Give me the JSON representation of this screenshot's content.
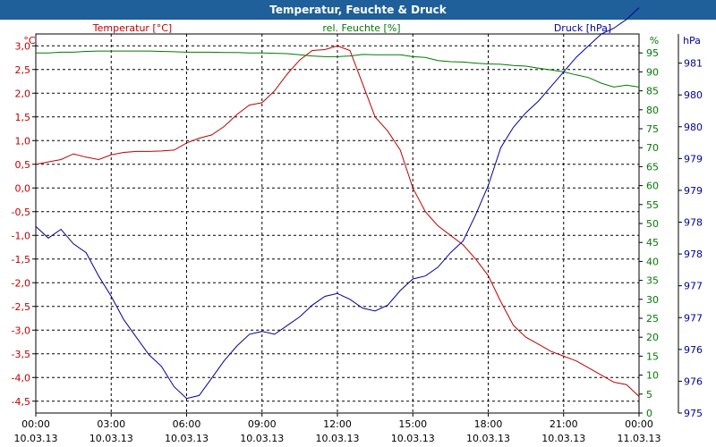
{
  "window": {
    "title": "Temperatur, Feuchte & Druck"
  },
  "colors": {
    "temperature": "#c00000",
    "humidity": "#007a00",
    "pressure": "#00009a",
    "title_bar": "#1f5f9a",
    "grid": "#000000"
  },
  "chart_data": {
    "type": "line",
    "title": "Temperatur, Feuchte & Druck",
    "grid": true,
    "x_ticks": [
      {
        "time": "00:00",
        "date": "10.03.13"
      },
      {
        "time": "03:00",
        "date": "10.03.13"
      },
      {
        "time": "06:00",
        "date": "10.03.13"
      },
      {
        "time": "09:00",
        "date": "10.03.13"
      },
      {
        "time": "12:00",
        "date": "10.03.13"
      },
      {
        "time": "15:00",
        "date": "10.03.13"
      },
      {
        "time": "18:00",
        "date": "10.03.13"
      },
      {
        "time": "21:00",
        "date": "10.03.13"
      },
      {
        "time": "00:00",
        "date": "11.03.13"
      }
    ],
    "x_hours": [
      0,
      0.5,
      1,
      1.5,
      2,
      2.5,
      3,
      3.5,
      4,
      4.5,
      5,
      5.5,
      6,
      6.5,
      7,
      7.5,
      8,
      8.5,
      9,
      9.5,
      10,
      10.5,
      11,
      11.5,
      12,
      12.5,
      13,
      13.5,
      14,
      14.5,
      15,
      15.5,
      16,
      16.5,
      17,
      17.5,
      18,
      18.5,
      19,
      19.5,
      20,
      20.5,
      21,
      21.5,
      22,
      22.5,
      23,
      23.5,
      24
    ],
    "axes": {
      "temperature": {
        "unit_label": "°C",
        "series_label": "Temperatur [°C]",
        "range": [
          -4.75,
          3.25
        ],
        "ticks": [
          "3,0",
          "2,5",
          "2,0",
          "1,5",
          "1,0",
          "0,5",
          "0,0",
          "-0,5",
          "-1,0",
          "-1,5",
          "-2,0",
          "-2,5",
          "-3,0",
          "-3,5",
          "-4,0",
          "-4,5"
        ]
      },
      "humidity": {
        "unit_label": "%",
        "series_label": "rel. Feuchte [%]",
        "range": [
          0,
          100
        ],
        "ticks": [
          "95",
          "90",
          "85",
          "80",
          "75",
          "70",
          "65",
          "60",
          "55",
          "50",
          "45",
          "40",
          "35",
          "30",
          "25",
          "20",
          "15",
          "10",
          "5",
          "0"
        ]
      },
      "pressure": {
        "unit_label": "hPa",
        "series_label": "Druck [hPa]",
        "range": [
          975,
          981.5
        ],
        "ticks": [
          "981",
          "980",
          "980",
          "979",
          "979",
          "978",
          "978",
          "977",
          "977",
          "976",
          "976",
          "975"
        ]
      }
    },
    "series": [
      {
        "name": "Temperatur [°C]",
        "axis": "temperature",
        "values": [
          0.5,
          0.55,
          0.6,
          0.72,
          0.65,
          0.6,
          0.7,
          0.75,
          0.77,
          0.77,
          0.78,
          0.8,
          0.95,
          1.05,
          1.12,
          1.3,
          1.55,
          1.75,
          1.8,
          2.05,
          2.4,
          2.7,
          2.9,
          2.92,
          3.0,
          2.9,
          2.2,
          1.5,
          1.2,
          0.8,
          0.0,
          -0.5,
          -0.8,
          -1.0,
          -1.2,
          -1.5,
          -1.85,
          -2.4,
          -2.9,
          -3.15,
          -3.3,
          -3.45,
          -3.55,
          -3.65,
          -3.8,
          -3.95,
          -4.1,
          -4.15,
          -4.4
        ]
      },
      {
        "name": "rel. Feuchte [%]",
        "axis": "humidity",
        "values": [
          95,
          95,
          95.2,
          95.2,
          95.4,
          95.5,
          95.5,
          95.5,
          95.5,
          95.5,
          95.4,
          95.3,
          95.2,
          95.2,
          95.2,
          95.1,
          95.1,
          95,
          95,
          94.9,
          94.8,
          94.5,
          94.2,
          94,
          94,
          94.2,
          94.6,
          94.5,
          94.5,
          94.5,
          94,
          93.8,
          93,
          92.7,
          92.6,
          92.3,
          92.1,
          92,
          91.7,
          91.5,
          91,
          90.5,
          90,
          89.2,
          88.5,
          87,
          86,
          86.5,
          86
        ]
      },
      {
        "name": "Druck [hPa]",
        "axis": "pressure",
        "values": [
          978.2,
          978.0,
          978.15,
          977.9,
          977.75,
          977.35,
          977.0,
          976.6,
          976.3,
          976.0,
          975.8,
          975.45,
          975.25,
          975.3,
          975.6,
          975.9,
          976.15,
          976.35,
          976.4,
          976.35,
          976.5,
          976.65,
          976.85,
          977.0,
          977.05,
          976.95,
          976.8,
          976.75,
          976.85,
          977.1,
          977.3,
          977.35,
          977.5,
          977.75,
          977.95,
          978.4,
          978.9,
          979.55,
          979.9,
          980.15,
          980.35,
          980.6,
          980.85,
          981.1,
          981.3,
          981.5,
          981.6,
          981.75,
          981.95
        ]
      }
    ]
  }
}
